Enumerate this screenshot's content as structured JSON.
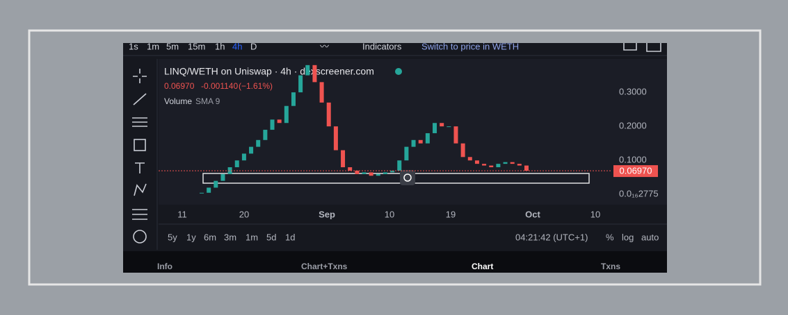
{
  "toolbar": {
    "intervals": [
      "1s",
      "1m",
      "5m",
      "15m",
      "1h",
      "4h",
      "D"
    ],
    "active_interval": 5,
    "indicators": "Indicators",
    "switch": "Switch to price in WETH"
  },
  "chart_data": {
    "type": "candlestick",
    "title": "LINQ/WETH on Uniswap · 4h · dexscreener.com",
    "last": "0.06970",
    "change": "-0.001140",
    "change_pct": "(−1.61%)",
    "volume_label": "Volume",
    "volume_sma": "SMA 9",
    "values": [
      0.005,
      0.02,
      0.04,
      0.06,
      0.08,
      0.1,
      0.12,
      0.14,
      0.16,
      0.19,
      0.22,
      0.21,
      0.26,
      0.3,
      0.35,
      0.38,
      0.33,
      0.27,
      0.2,
      0.13,
      0.08,
      0.07,
      0.06,
      0.065,
      0.055,
      0.06,
      0.065,
      0.07,
      0.1,
      0.14,
      0.16,
      0.15,
      0.18,
      0.21,
      0.2,
      0.2,
      0.15,
      0.11,
      0.1,
      0.09,
      0.085,
      0.08,
      0.09,
      0.095,
      0.09,
      0.085,
      0.0697
    ],
    "up_color": "#26a69a",
    "down_color": "#ef5350",
    "ylim": [
      -0.03,
      0.398
    ],
    "yticks": [
      {
        "value": 0.3,
        "label": "0.3000"
      },
      {
        "value": 0.2,
        "label": "0.2000"
      },
      {
        "value": 0.1,
        "label": "0.1000"
      },
      {
        "value": 2.775e-17,
        "label": "0.0₁₆2775"
      }
    ],
    "current": {
      "value": 0.0697,
      "label": "0.06970"
    },
    "xtick_labels": [
      "11",
      "20",
      "Sep",
      "10",
      "19",
      "Oct",
      "10"
    ]
  },
  "bottom_bar": {
    "ranges": [
      "5y",
      "1y",
      "6m",
      "3m",
      "1m",
      "5d",
      "1d"
    ],
    "time": "04:21:42 (UTC+1)",
    "scale_options": [
      "%",
      "log",
      "auto"
    ]
  },
  "tabs": [
    "Info",
    "Chart+Txns",
    "Chart",
    "Txns"
  ],
  "active_tab": 2
}
